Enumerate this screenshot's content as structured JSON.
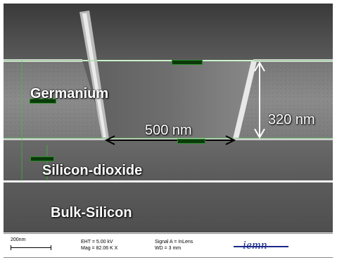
{
  "labels": {
    "germanium": "Germanium",
    "silicon_dioxide": "Silicon-dioxide",
    "bulk_silicon": "Bulk-Silicon",
    "width": "500 nm",
    "height": "320 nm"
  },
  "infobar": {
    "scale": "200nm",
    "eht": "EHT = 5.00 kV",
    "mag": "Mag = 82.06 K X",
    "signal": "Signal A = InLens",
    "wd": "WD =   3 mm",
    "logo": "iemn"
  },
  "colors": {
    "annotation": "#ffffff",
    "arrow": "#000000",
    "measure_line": "#33cc33",
    "logo": "#1b2a8a"
  }
}
